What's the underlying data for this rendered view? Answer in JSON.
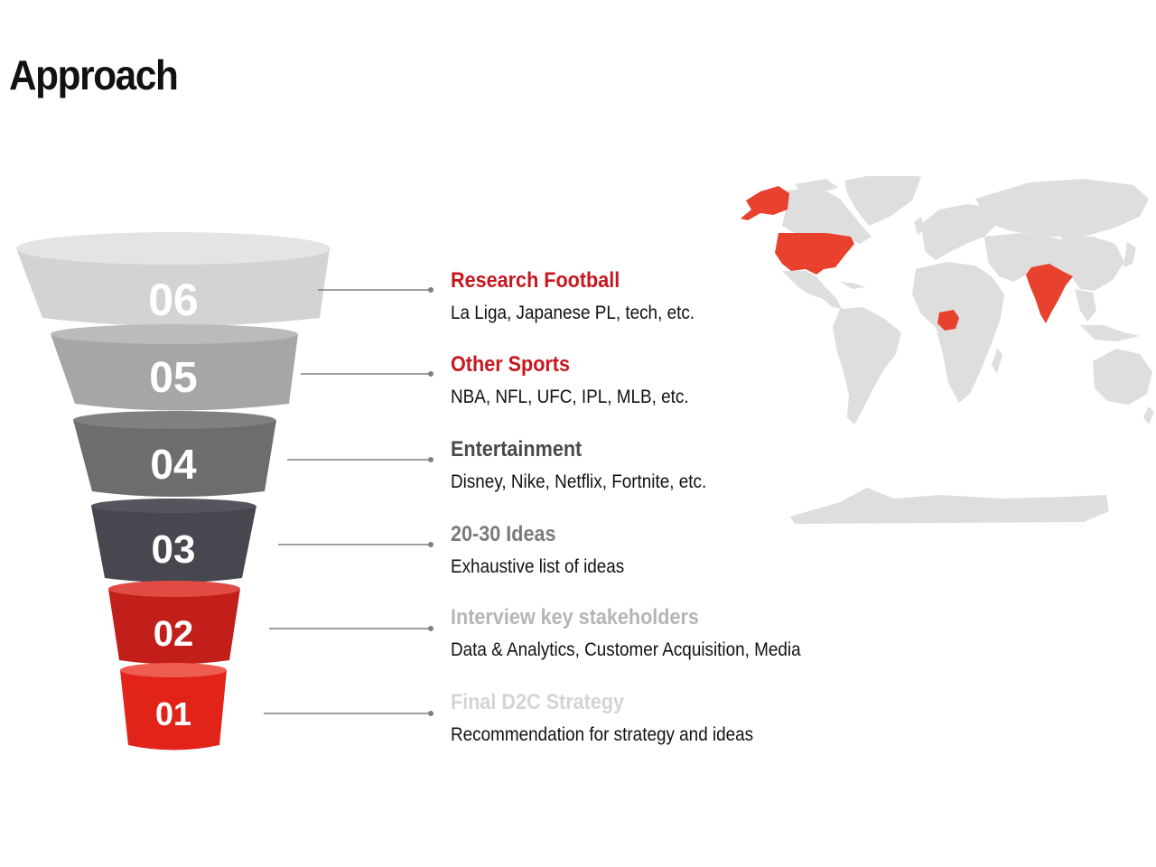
{
  "title": "Approach",
  "colors": {
    "accent_red": "#d9251d",
    "highlight_red": "#e8412e",
    "map_land": "#dedede",
    "connector": "#7f7f7f"
  },
  "funnel": [
    {
      "number": "06",
      "color": "#d3d3d3",
      "title": "Research Football",
      "title_color": "#c8171e",
      "description": "La Liga, Japanese PL, tech, etc."
    },
    {
      "number": "05",
      "color": "#a6a6a6",
      "title": "Other Sports",
      "title_color": "#c8171e",
      "description": "NBA, NFL, UFC, IPL, MLB, etc."
    },
    {
      "number": "04",
      "color": "#6d6d6d",
      "title": "Entertainment",
      "title_color": "#4a4a4a",
      "description": "Disney, Nike, Netflix, Fortnite, etc."
    },
    {
      "number": "03",
      "color": "#474750",
      "title": "20-30 Ideas",
      "title_color": "#7b7b7b",
      "description": "Exhaustive list of ideas"
    },
    {
      "number": "02",
      "color": "#c21f1a",
      "title": "Interview key stakeholders",
      "title_color": "#b5b5b5",
      "description": "Data & Analytics, Customer Acquisition, Media"
    },
    {
      "number": "01",
      "color": "#e2231a",
      "title": "Final D2C Strategy",
      "title_color": "#d4d4d4",
      "description": "Recommendation for strategy and ideas"
    }
  ],
  "map": {
    "highlighted_countries": [
      "United States",
      "Alaska",
      "Nigeria",
      "India"
    ]
  }
}
